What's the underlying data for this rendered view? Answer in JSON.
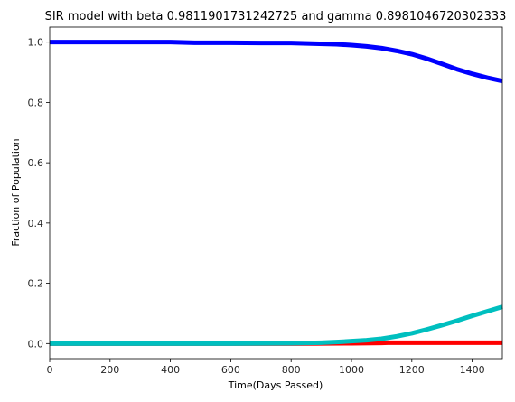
{
  "chart_data": {
    "type": "line",
    "title": "SIR model with beta 0.9811901731242725 and gamma 0.8981046720302333",
    "xlabel": "Time(Days Passed)",
    "ylabel": "Fraction of Population",
    "xlim": [
      0,
      1500
    ],
    "ylim": [
      -0.05,
      1.05
    ],
    "xticks": [
      0,
      200,
      400,
      600,
      800,
      1000,
      1200,
      1400
    ],
    "yticks": [
      0.0,
      0.2,
      0.4,
      0.6,
      0.8,
      1.0
    ],
    "grid": false,
    "series": [
      {
        "color": "#0000ff",
        "x": [
          0,
          200,
          400,
          480,
          600,
          700,
          800,
          880,
          950,
          1000,
          1050,
          1100,
          1150,
          1200,
          1250,
          1300,
          1350,
          1400,
          1450,
          1500
        ],
        "y": [
          1.0,
          1.0,
          1.0,
          0.998,
          0.998,
          0.997,
          0.997,
          0.995,
          0.993,
          0.99,
          0.986,
          0.98,
          0.971,
          0.96,
          0.945,
          0.928,
          0.91,
          0.895,
          0.882,
          0.871
        ]
      },
      {
        "color": "#ff0000",
        "x": [
          0,
          400,
          800,
          1000,
          1100,
          1120,
          1200,
          1300,
          1400,
          1500
        ],
        "y": [
          0.0,
          0.0,
          0.0,
          0.001,
          0.002,
          0.003,
          0.003,
          0.003,
          0.003,
          0.003
        ]
      },
      {
        "color": "#00bfbf",
        "x": [
          0,
          200,
          400,
          600,
          800,
          900,
          950,
          1000,
          1050,
          1100,
          1150,
          1200,
          1250,
          1300,
          1350,
          1400,
          1450,
          1500
        ],
        "y": [
          0.0,
          0.0,
          0.0,
          0.0,
          0.001,
          0.003,
          0.005,
          0.008,
          0.011,
          0.016,
          0.024,
          0.034,
          0.047,
          0.061,
          0.076,
          0.092,
          0.107,
          0.122
        ]
      }
    ]
  }
}
